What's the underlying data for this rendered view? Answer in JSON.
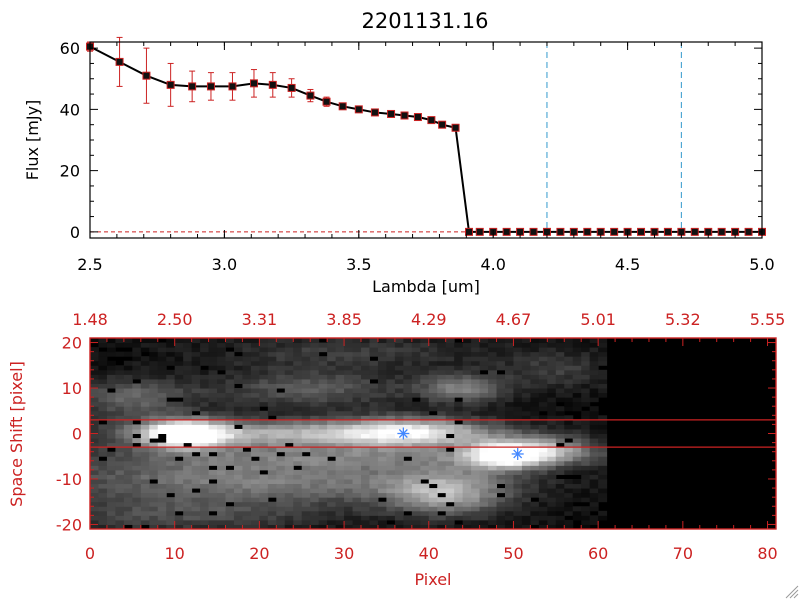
{
  "colors": {
    "line": "#000000",
    "errorbar": "#cc2222",
    "marker_edge": "#cc2222",
    "marker_fill": "#111111",
    "band_line": "#cc2222",
    "axis_red": "#cc2222",
    "dashed_blue": "#3399cc",
    "star": "#4488ff"
  },
  "chart_data": [
    {
      "type": "line",
      "title": "2201131.16",
      "xlabel": "Lambda [um]",
      "ylabel": "Flux [mJy]",
      "xlim": [
        2.5,
        5.0
      ],
      "ylim": [
        -2,
        62
      ],
      "xticks": [
        "2.5",
        "3.0",
        "3.5",
        "4.0",
        "4.5",
        "5.0"
      ],
      "yticks": [
        "0",
        "20",
        "40",
        "60"
      ],
      "vlines_dashed": [
        4.2,
        4.7
      ],
      "hline_dashed": 0,
      "series": [
        {
          "x": [
            2.5,
            2.61,
            2.71,
            2.8,
            2.88,
            2.95,
            3.03,
            3.11,
            3.18,
            3.25,
            3.32,
            3.38,
            3.44,
            3.5,
            3.56,
            3.62,
            3.67,
            3.72,
            3.77,
            3.81,
            3.86,
            3.91,
            3.95,
            4.0,
            4.05,
            4.1,
            4.15,
            4.2,
            4.25,
            4.3,
            4.35,
            4.4,
            4.45,
            4.5,
            4.55,
            4.6,
            4.65,
            4.7,
            4.75,
            4.8,
            4.85,
            4.9,
            4.95,
            5.0
          ],
          "y": [
            60.5,
            55.5,
            51,
            48,
            47.5,
            47.5,
            47.5,
            48.5,
            48,
            47,
            44.5,
            42.5,
            41,
            40,
            39,
            38.5,
            38,
            37.5,
            36.5,
            35,
            34,
            0,
            0,
            0,
            0,
            0,
            0,
            0,
            0,
            0,
            0,
            0,
            0,
            0,
            0,
            0,
            0,
            0,
            0,
            0,
            0,
            0,
            0,
            0
          ],
          "yerr": [
            1.5,
            8,
            9,
            7,
            5,
            4.5,
            4.5,
            4.5,
            4,
            3,
            2,
            1.5,
            1,
            1,
            1,
            0.8,
            0.8,
            0.8,
            0.8,
            0.8,
            0.8,
            0,
            0,
            0,
            0,
            0,
            0,
            0,
            0,
            0,
            0,
            0,
            0,
            0,
            0,
            0,
            0,
            0,
            0,
            0,
            0,
            0,
            0,
            0
          ]
        }
      ]
    },
    {
      "type": "heatmap",
      "xlabel": "Pixel",
      "ylabel": "Space Shift [pixel]",
      "xlim": [
        0,
        81
      ],
      "ylim": [
        -21,
        21
      ],
      "xticks": [
        "0",
        "10",
        "20",
        "30",
        "40",
        "50",
        "60",
        "70",
        "80"
      ],
      "yticks": [
        "-20",
        "-10",
        "0",
        "10",
        "20"
      ],
      "top_xticks": [
        "1.48",
        "2.50",
        "3.31",
        "3.85",
        "4.29",
        "4.67",
        "5.01",
        "5.32",
        "5.55"
      ],
      "band_lines_y": [
        3,
        -3
      ],
      "stars": [
        {
          "x": 37,
          "y": 0
        },
        {
          "x": 50.5,
          "y": -4.5
        }
      ],
      "data_extent_x": [
        0,
        61
      ],
      "blobs": [
        {
          "x": 11,
          "y": 0,
          "sx": 3.5,
          "sy": 2.2,
          "amp": 1.0
        },
        {
          "x": 25,
          "y": 0,
          "sx": 15,
          "sy": 2.2,
          "amp": 0.62
        },
        {
          "x": 38,
          "y": 0.5,
          "sx": 6,
          "sy": 2.3,
          "amp": 0.55
        },
        {
          "x": 49,
          "y": -4.5,
          "sx": 3.2,
          "sy": 2.2,
          "amp": 0.95
        },
        {
          "x": 55,
          "y": -3.5,
          "sx": 3,
          "sy": 2.0,
          "amp": 0.45
        },
        {
          "x": 20,
          "y": -10,
          "sx": 18,
          "sy": 4,
          "amp": 0.45
        },
        {
          "x": 42,
          "y": -13,
          "sx": 5,
          "sy": 3.5,
          "amp": 0.55
        },
        {
          "x": 5,
          "y": 8,
          "sx": 5,
          "sy": 3,
          "amp": 0.35
        },
        {
          "x": 26,
          "y": 10,
          "sx": 8,
          "sy": 3,
          "amp": 0.3
        },
        {
          "x": 44,
          "y": 10,
          "sx": 3.5,
          "sy": 2.2,
          "amp": 0.45
        },
        {
          "x": 30,
          "y": 18,
          "sx": 12,
          "sy": 2.5,
          "amp": 0.18
        },
        {
          "x": 55,
          "y": 14,
          "sx": 5,
          "sy": 3,
          "amp": 0.18
        },
        {
          "x": 10,
          "y": -18,
          "sx": 12,
          "sy": 2.5,
          "amp": 0.22
        },
        {
          "x": 35,
          "y": -5,
          "sx": 22,
          "sy": 1.8,
          "amp": 0.25
        }
      ]
    }
  ]
}
